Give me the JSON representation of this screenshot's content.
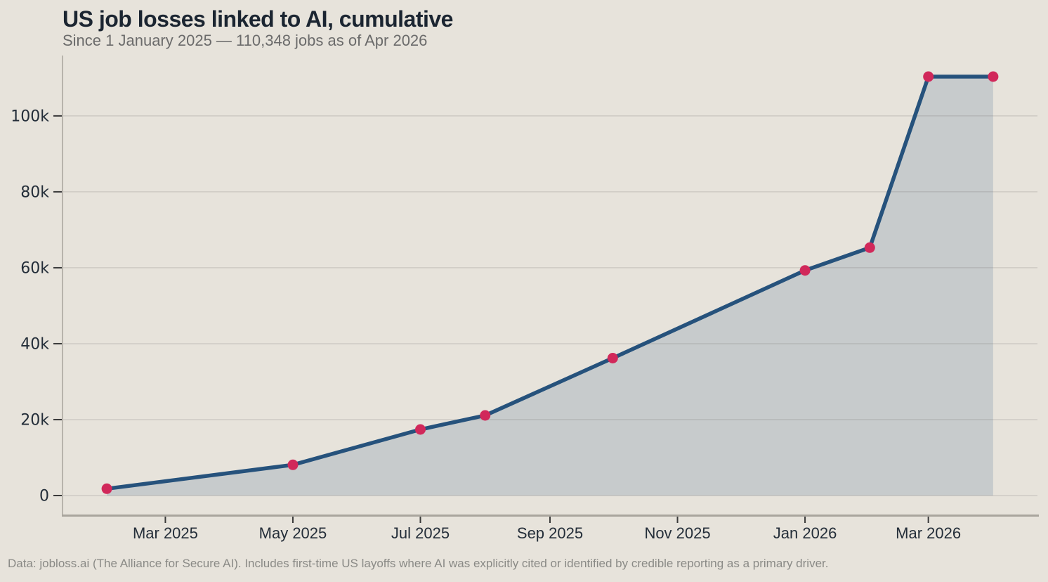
{
  "chart_data": {
    "type": "area",
    "title": "US job losses linked to AI, cumulative",
    "subtitle": "Since 1 January 2025 — 110,348 jobs as of Apr 2026",
    "source_note": "Data: jobloss.ai (The Alliance for Secure AI). Includes first-time US layoffs where AI was explicitly cited or identified by credible reporting as a primary driver.",
    "x": [
      "2025-02-01",
      "2025-05-01",
      "2025-07-01",
      "2025-08-01",
      "2025-10-01",
      "2026-01-01",
      "2026-02-01",
      "2026-03-01",
      "2026-04-01"
    ],
    "values": [
      1800,
      8100,
      17400,
      21100,
      36200,
      59300,
      65300,
      110348,
      110348
    ],
    "x_ticks": [
      {
        "date": "2025-03-01",
        "label": "Mar 2025"
      },
      {
        "date": "2025-05-01",
        "label": "May 2025"
      },
      {
        "date": "2025-07-01",
        "label": "Jul 2025"
      },
      {
        "date": "2025-09-01",
        "label": "Sep 2025"
      },
      {
        "date": "2025-11-01",
        "label": "Nov 2025"
      },
      {
        "date": "2026-01-01",
        "label": "Jan 2026"
      },
      {
        "date": "2026-03-01",
        "label": "Mar 2026"
      }
    ],
    "y_ticks": [
      {
        "value": 0,
        "label": "0"
      },
      {
        "value": 20000,
        "label": "20k"
      },
      {
        "value": 40000,
        "label": "40k"
      },
      {
        "value": 60000,
        "label": "60k"
      },
      {
        "value": 80000,
        "label": "80k"
      },
      {
        "value": 100000,
        "label": "100k"
      }
    ],
    "ylim": [
      0,
      115900
    ],
    "grid": "horizontal",
    "legend": "none",
    "colors": {
      "background": "#e7e3db",
      "line": "#26527c",
      "point": "#d1285a",
      "fill": "#c7cbcc",
      "grid": "rgba(99, 97, 92, 0.22)",
      "spine": "#a9a59d",
      "tick_mark": "#3a3a3a",
      "tick_label": "#242e39",
      "title": "#1b2531",
      "subtitle": "#6b6b6b",
      "source": "#8a8a86"
    }
  }
}
